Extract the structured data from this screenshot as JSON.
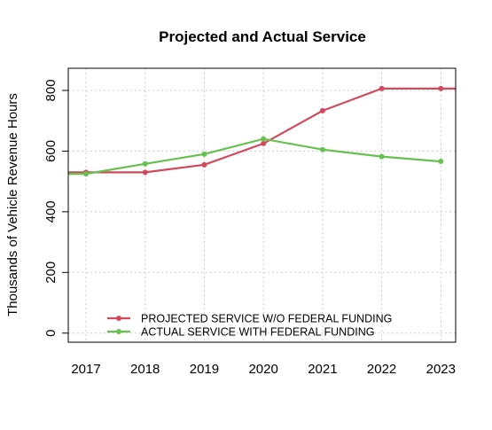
{
  "chart_data": {
    "type": "line",
    "title": "Projected and Actual Service",
    "ylabel": "Thousands of Vehicle Revenue Hours",
    "xlabel": "",
    "x": [
      2017,
      2018,
      2019,
      2020,
      2021,
      2022,
      2023
    ],
    "xlim": [
      2016.7,
      2023.25
    ],
    "ylim": [
      -30,
      873
    ],
    "yticks": [
      0,
      200,
      400,
      600,
      800
    ],
    "grid": true,
    "legend_position": "bottom-left",
    "series": [
      {
        "name": "PROJECTED SERVICE W/O FEDERAL FUNDING",
        "color": "#d1495b",
        "values": [
          530,
          530,
          555,
          625,
          733,
          806,
          806
        ]
      },
      {
        "name": "ACTUAL SERVICE WITH FEDERAL FUNDING",
        "color": "#66c24f",
        "values": [
          525,
          558,
          590,
          640,
          605,
          582,
          566
        ]
      }
    ]
  }
}
